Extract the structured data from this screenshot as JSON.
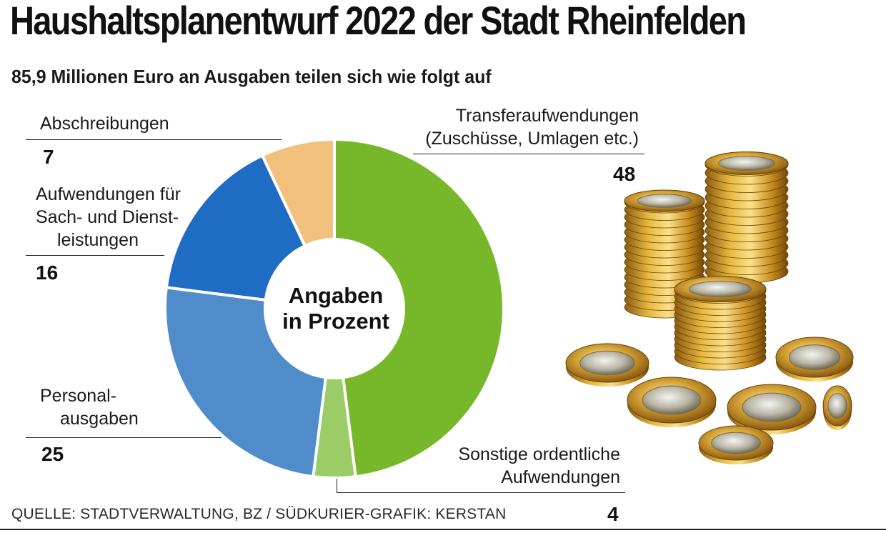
{
  "header": {
    "title": "Haushaltsplanentwurf 2022 der Stadt Rheinfelden",
    "subtitle": "85,9 Millionen Euro an Ausgaben teilen sich wie folgt auf"
  },
  "chart_data": {
    "type": "pie",
    "title": "Haushaltsplanentwurf 2022 der Stadt Rheinfelden",
    "subtitle": "85,9 Millionen Euro an Ausgaben teilen sich wie folgt auf",
    "center_label": [
      "Angaben",
      "in Prozent"
    ],
    "unit": "Prozent",
    "slices": [
      {
        "label_lines": [
          "Transferaufwendungen",
          "(Zuschüsse, Umlagen etc.)"
        ],
        "value": 48,
        "color": "#76b82a"
      },
      {
        "label_lines": [
          "Sonstige ordentliche",
          "Aufwendungen"
        ],
        "value": 4,
        "color": "#9ccc65"
      },
      {
        "label_lines": [
          "Personal-",
          "ausgaben"
        ],
        "value": 25,
        "color": "#4f8cc9"
      },
      {
        "label_lines": [
          "Aufwendungen für",
          "Sach- und Dienst-",
          "leistungen"
        ],
        "value": 16,
        "color": "#1f6cc4"
      },
      {
        "label_lines": [
          "Abschreibungen"
        ],
        "value": 7,
        "color": "#f2c07d"
      }
    ]
  },
  "footer": {
    "source": "QUELLE: STADTVERWALTUNG, BZ / SÜDKURIER-GRAFIK: KERSTAN"
  }
}
